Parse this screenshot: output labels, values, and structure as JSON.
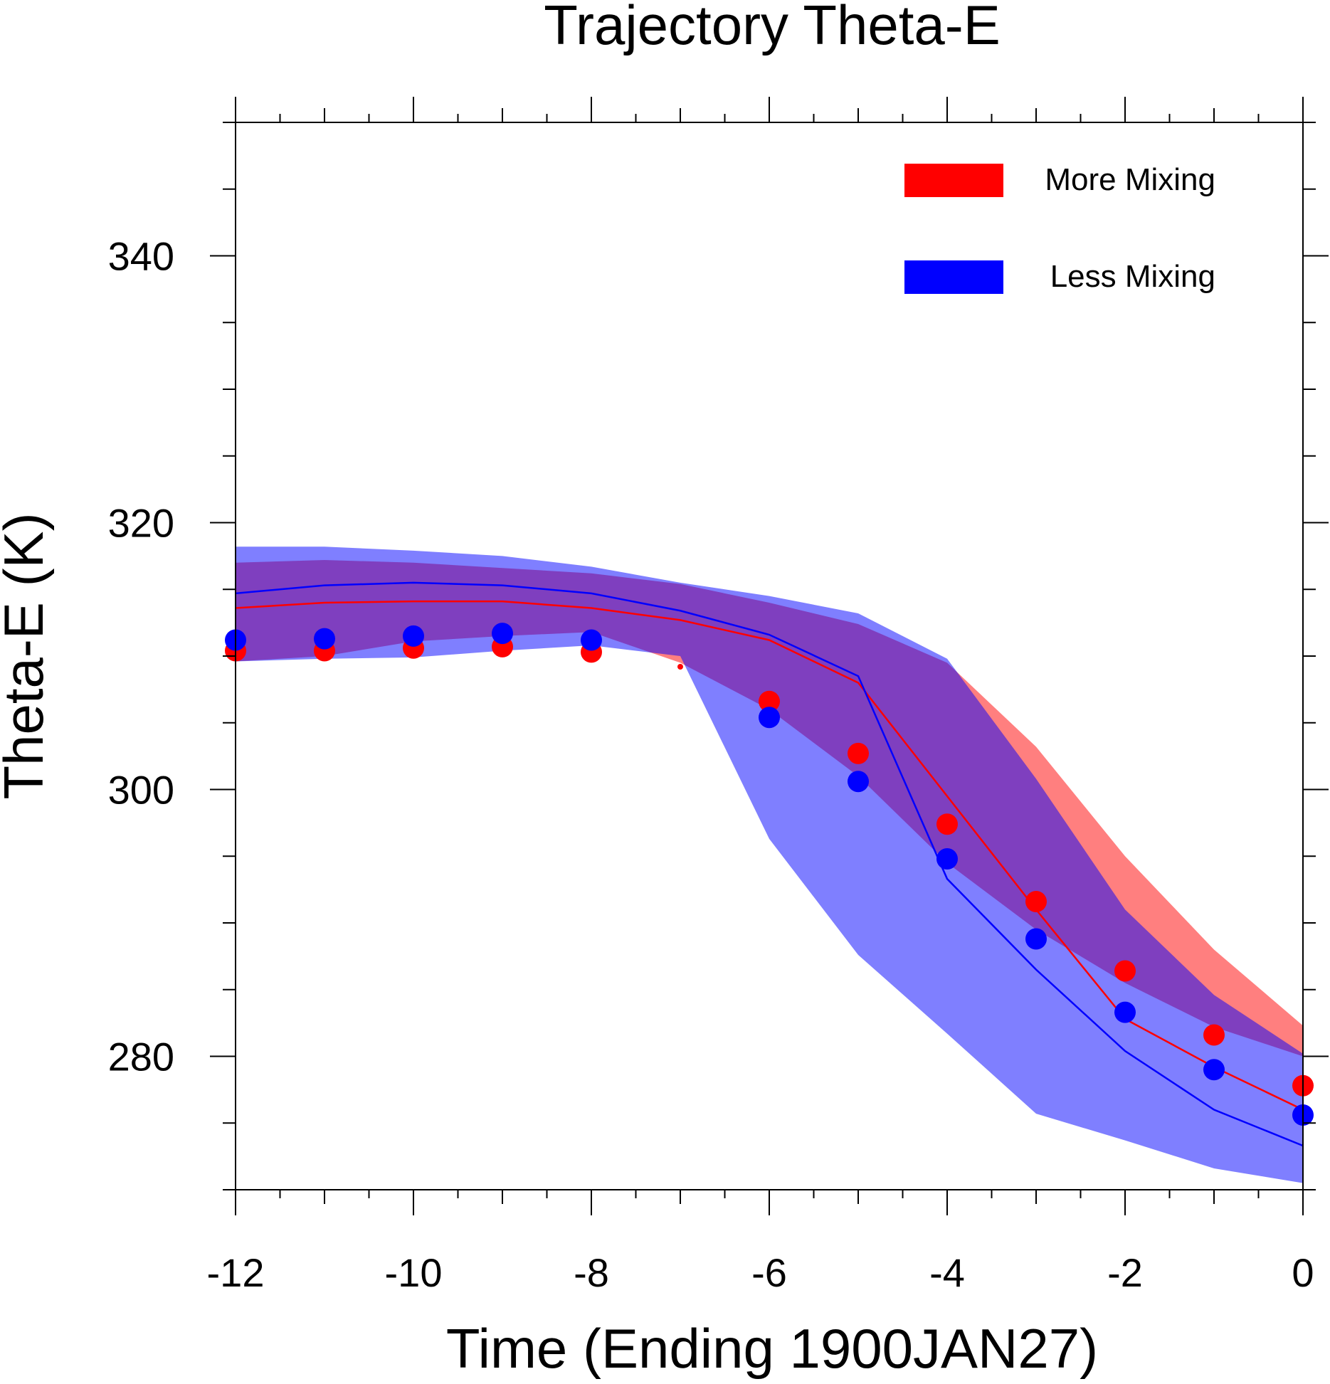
{
  "chart_data": {
    "type": "line",
    "title": "Trajectory Theta-E",
    "xlabel": "Time (Ending 1900JAN27)",
    "ylabel": "Theta-E (K)",
    "xlim": [
      -12,
      0
    ],
    "ylim": [
      270,
      350
    ],
    "x_ticks": [
      -12,
      -10,
      -8,
      -6,
      -4,
      -2,
      0
    ],
    "x_tick_labels": [
      "-12",
      "-10",
      "-8",
      "-6",
      "-4",
      "-2",
      "0"
    ],
    "y_ticks": [
      280,
      300,
      320,
      340
    ],
    "y_tick_labels": [
      "280",
      "300",
      "320",
      "340"
    ],
    "x": [
      -12,
      -11,
      -10,
      -9,
      -8,
      -7,
      -6,
      -5,
      -4,
      -3,
      -2,
      -1,
      0
    ],
    "legend_position": "top-right",
    "series": [
      {
        "name": "More Mixing",
        "color": "#ff0000",
        "band_color": "#ff0000",
        "band_opacity": 0.5,
        "band_upper": [
          317.0,
          317.2,
          317.0,
          316.6,
          316.2,
          315.4,
          314.0,
          312.4,
          309.5,
          303.2,
          295.0,
          288.0,
          282.3
        ],
        "band_lower": [
          309.6,
          310.0,
          311.1,
          311.5,
          311.8,
          309.5,
          306.0,
          301.0,
          294.5,
          289.5,
          285.5,
          282.2,
          280.0
        ],
        "mean": [
          313.6,
          314.0,
          314.1,
          314.1,
          313.6,
          312.7,
          311.2,
          308.0,
          299.5,
          291.0,
          282.8,
          279.2,
          276.0
        ],
        "dots": [
          310.4,
          310.4,
          310.6,
          310.7,
          310.3,
          309.2,
          306.6,
          302.7,
          297.4,
          291.6,
          286.4,
          281.6,
          277.8
        ]
      },
      {
        "name": "Less Mixing",
        "color": "#0000ff",
        "band_color": "#0000ff",
        "band_opacity": 0.5,
        "band_upper": [
          318.2,
          318.2,
          317.9,
          317.5,
          316.7,
          315.5,
          314.5,
          313.2,
          309.8,
          300.8,
          291.0,
          284.6,
          280.2
        ],
        "band_lower": [
          309.6,
          309.8,
          309.9,
          310.4,
          310.8,
          310.0,
          296.3,
          287.6,
          281.7,
          275.7,
          273.7,
          271.6,
          270.5
        ],
        "mean": [
          314.7,
          315.3,
          315.5,
          315.3,
          314.7,
          313.4,
          311.6,
          308.5,
          293.3,
          286.5,
          280.4,
          276.0,
          273.3
        ],
        "dots": [
          311.2,
          311.3,
          311.5,
          311.7,
          311.2,
          null,
          305.4,
          300.6,
          294.8,
          288.8,
          283.3,
          279.0,
          275.6
        ]
      }
    ]
  }
}
